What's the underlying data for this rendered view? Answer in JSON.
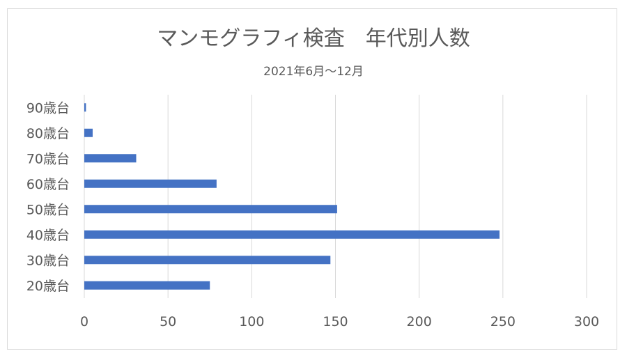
{
  "chart_data": {
    "type": "bar",
    "orientation": "horizontal",
    "title": "マンモグラフィ検査　年代別人数",
    "subtitle": "2021年6月～12月",
    "categories": [
      "20歳台",
      "30歳台",
      "40歳台",
      "50歳台",
      "60歳台",
      "70歳台",
      "80歳台",
      "90歳台"
    ],
    "values": [
      75,
      147,
      248,
      151,
      79,
      31,
      5,
      1
    ],
    "xlim": [
      0,
      300
    ],
    "xticks": [
      0,
      50,
      100,
      150,
      200,
      250,
      300
    ],
    "grid": true,
    "legend": "none",
    "colors": {
      "bar": "#4472C4"
    }
  }
}
